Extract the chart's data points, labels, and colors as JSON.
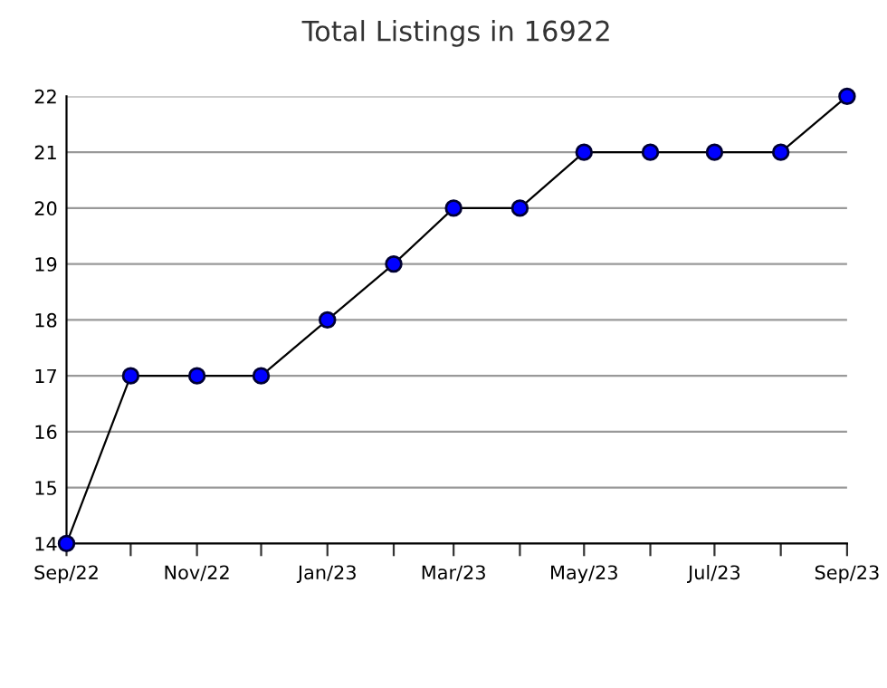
{
  "chart_data": {
    "type": "line",
    "title": "Total Listings in 16922",
    "x": [
      "2022-09",
      "2022-10",
      "2022-11",
      "2022-12",
      "2023-01",
      "2023-02",
      "2023-03",
      "2023-04",
      "2023-05",
      "2023-06",
      "2023-07",
      "2023-08",
      "2023-09"
    ],
    "series": [
      {
        "color": "#0000ff",
        "values": [
          14,
          17,
          17,
          17,
          18,
          19,
          20,
          20,
          21,
          21,
          21,
          21,
          22
        ]
      }
    ],
    "xlim": [
      "2022-09",
      "2023-09"
    ],
    "xticks": [
      {
        "value": "2022-09",
        "label": "Sep/22"
      },
      {
        "value": "2022-10",
        "label": null
      },
      {
        "value": "2022-11",
        "label": "Nov/22"
      },
      {
        "value": "2022-12",
        "label": null
      },
      {
        "value": "2023-01",
        "label": "Jan/23"
      },
      {
        "value": "2023-02",
        "label": null
      },
      {
        "value": "2023-03",
        "label": "Mar/23"
      },
      {
        "value": "2023-04",
        "label": null
      },
      {
        "value": "2023-05",
        "label": "May/23"
      },
      {
        "value": "2023-06",
        "label": null
      },
      {
        "value": "2023-07",
        "label": "Jul/23"
      },
      {
        "value": "2023-08",
        "label": null
      },
      {
        "value": "2023-09",
        "label": "Sep/23"
      }
    ],
    "ylim": [
      14,
      22
    ],
    "yticks": [
      14,
      15,
      16,
      17,
      18,
      19,
      20,
      21,
      22
    ],
    "grid": "y",
    "marker": "circle",
    "line_style": "solid",
    "legend": false
  }
}
